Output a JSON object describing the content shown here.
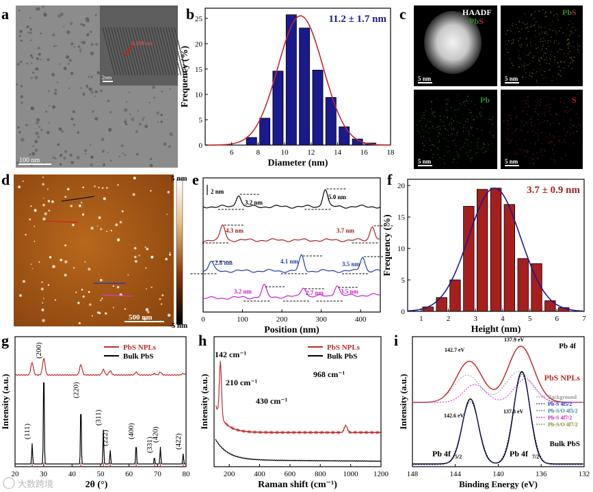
{
  "panels": {
    "a": "a",
    "b": "b",
    "c": "c",
    "d": "d",
    "e": "e",
    "f": "f",
    "g": "g",
    "h": "h",
    "i": "i"
  },
  "colors": {
    "navy": "#1a1a8c",
    "red": "#c0282a",
    "darkred": "#a51f1f",
    "blue": "#1f3aa8",
    "magenta": "#c81ec8",
    "black": "#000000",
    "green": "#2d8a2d"
  },
  "tem": {
    "scale": "100 nm",
    "inset_scale": "2nm",
    "fringe": "0.338 nm"
  },
  "chart_data": [
    {
      "id": "b",
      "type": "bar",
      "title": "11.2 ± 1.7 nm",
      "xlabel": "Diameter (nm)",
      "ylabel": "Frequency (%)",
      "xlim": [
        4,
        18
      ],
      "ylim": [
        0,
        27
      ],
      "xticks": [
        "6",
        "8",
        "10",
        "12",
        "14",
        "16",
        "18"
      ],
      "yticks": [
        "0",
        "5",
        "10",
        "15",
        "20",
        "25"
      ],
      "centers": [
        7.5,
        8.5,
        9.5,
        10.5,
        11.5,
        12.5,
        13.5,
        14.5,
        15.5,
        16.5
      ],
      "values": [
        1.5,
        5.3,
        14.6,
        25.7,
        23.1,
        14.8,
        9.4,
        3.6,
        1.2,
        0.4
      ],
      "fit": {
        "mean": 11.2,
        "sigma": 1.7,
        "peak": 25.5
      }
    },
    {
      "id": "f",
      "type": "bar",
      "title": "3.7 ± 0.9 nm",
      "xlabel": "Height (nm)",
      "ylabel": "Frequency (%)",
      "xlim": [
        0.5,
        7
      ],
      "ylim": [
        0,
        21
      ],
      "xticks": [
        "1",
        "2",
        "3",
        "4",
        "5",
        "6",
        "7"
      ],
      "yticks": [
        "0",
        "5",
        "10",
        "15",
        "20"
      ],
      "centers": [
        1.25,
        1.75,
        2.25,
        2.75,
        3.25,
        3.75,
        4.25,
        4.75,
        5.25,
        5.75,
        6.25
      ],
      "values": [
        0.7,
        2.2,
        5,
        16.7,
        19.4,
        19.6,
        17,
        8.4,
        7.6,
        1.7,
        0.6
      ],
      "fit": {
        "mean": 3.7,
        "sigma": 0.95,
        "peak": 19.6
      }
    },
    {
      "id": "e",
      "type": "line",
      "xlabel": "Position (nm)",
      "xlim": [
        0,
        450
      ],
      "xticks": [
        "0",
        "100",
        "200",
        "300",
        "400"
      ],
      "scale_bar": "2 nm",
      "series": [
        {
          "name": "black",
          "color": "#000000",
          "labels": [
            "3.2 nm",
            "5.0 nm"
          ]
        },
        {
          "name": "red",
          "color": "#a51f1f",
          "labels": [
            "4.3 nm",
            "3.7 nm"
          ]
        },
        {
          "name": "blue",
          "color": "#1f3aa8",
          "labels": [
            "2.8 nm",
            "4.1 nm",
            "3.5 nm"
          ]
        },
        {
          "name": "magenta",
          "color": "#c81ec8",
          "labels": [
            "3.2 nm",
            "2.7 nm",
            "3.5 nm"
          ]
        }
      ]
    },
    {
      "id": "g",
      "type": "line",
      "xlabel": "2θ (°)",
      "ylabel": "Intensity (a.u.)",
      "xlim": [
        20,
        80
      ],
      "xticks": [
        "20",
        "30",
        "40",
        "50",
        "60",
        "70",
        "80"
      ],
      "legend": [
        "PbS NPLs",
        "Bulk PbS"
      ],
      "peaks": [
        {
          "x": 26,
          "label": "(111)"
        },
        {
          "x": 30.1,
          "label": "(200)"
        },
        {
          "x": 43.1,
          "label": "(220)"
        },
        {
          "x": 51,
          "label": "(311)"
        },
        {
          "x": 53.4,
          "label": "(222)"
        },
        {
          "x": 62.5,
          "label": "(400)"
        },
        {
          "x": 68.9,
          "label": "(331)"
        },
        {
          "x": 71,
          "label": "(420)"
        },
        {
          "x": 79,
          "label": "(422)"
        }
      ]
    },
    {
      "id": "h",
      "type": "line",
      "xlabel": "Raman shift (cm⁻¹)",
      "ylabel": "Intensity (a.u.)",
      "xlim": [
        100,
        1200
      ],
      "xticks": [
        "200",
        "400",
        "600",
        "800",
        "1000",
        "1200"
      ],
      "legend": [
        "PbS NPLs",
        "Bulk PbS"
      ],
      "annotations": [
        "142 cm⁻¹",
        "210 cm⁻¹",
        "430 cm⁻¹",
        "968 cm⁻¹"
      ]
    },
    {
      "id": "i",
      "type": "line",
      "xlabel": "Binding Energy (eV)",
      "ylabel": "Intensity (a.u.)",
      "xlim": [
        148,
        132
      ],
      "xticks": [
        "148",
        "144",
        "140",
        "136",
        "132"
      ],
      "title": "Pb 4f",
      "series_labels": [
        "PbS NPLs",
        "Bulk PbS"
      ],
      "annotations": [
        "142.7 eV",
        "137.9 eV",
        "142.6 eV",
        "137.8 eV"
      ],
      "legend": [
        "Background",
        "Pb-S 4f5/2",
        "Pb-S/O 4f5/2",
        "Pb-S 4f7/2",
        "Pb-S/O 4f7/2"
      ]
    }
  ],
  "eds": {
    "haadf": "HAADF",
    "pbs": "PbS",
    "pb": "Pb",
    "s": "S",
    "scale": "5 nm"
  },
  "afm": {
    "top": "5 nm",
    "bottom": "-5 nm",
    "scale": "500 nm"
  },
  "watermark": "大数跨境"
}
